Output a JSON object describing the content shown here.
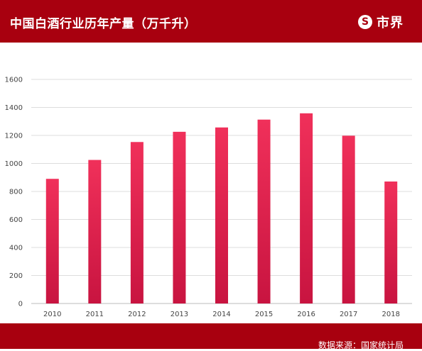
{
  "header": {
    "title": "中国白酒行业历年产量（万千升）",
    "logo_text": "市界",
    "logo_mark": "S",
    "background": "#a8000f"
  },
  "footer": {
    "source": "数据来源：国家统计局"
  },
  "chart_data": {
    "type": "bar",
    "title": "中国白酒行业历年产量（万千升）",
    "xlabel": "",
    "ylabel": "",
    "categories": [
      "2010",
      "2011",
      "2012",
      "2013",
      "2014",
      "2015",
      "2016",
      "2017",
      "2018"
    ],
    "values": [
      890,
      1025,
      1153,
      1226,
      1257,
      1313,
      1358,
      1198,
      871
    ],
    "ylim": [
      0,
      1600
    ],
    "yticks": [
      0,
      200,
      400,
      600,
      800,
      1000,
      1200,
      1400,
      1600
    ],
    "grid": true,
    "bar_color_top": "#f0305a",
    "bar_color_bottom": "#c81440"
  }
}
